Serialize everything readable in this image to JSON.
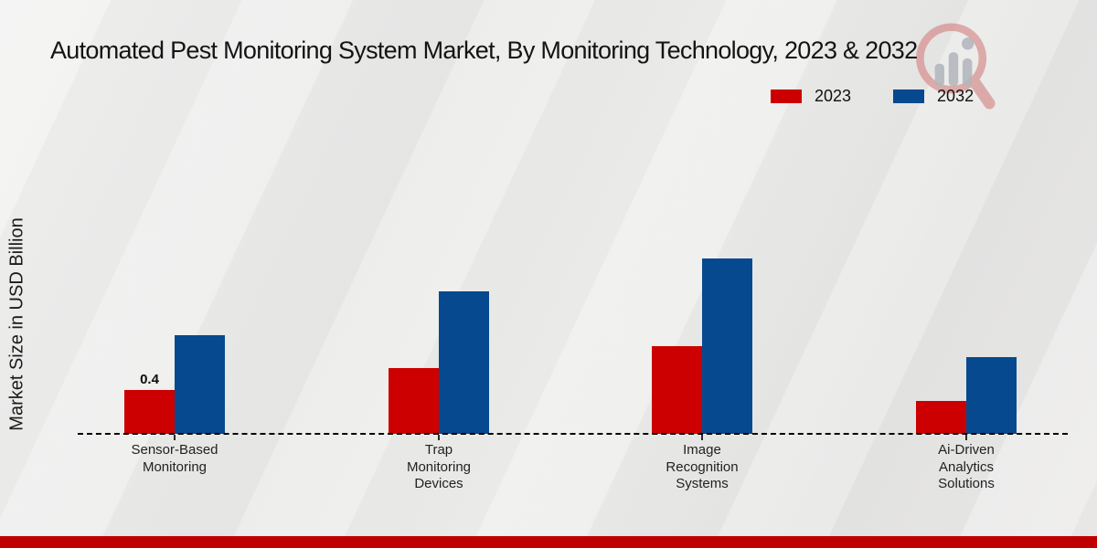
{
  "title": "Automated Pest Monitoring System Market, By Monitoring Technology, 2023 & 2032",
  "ylabel": "Market Size in USD Billion",
  "legend": {
    "items": [
      "2023",
      "2032"
    ]
  },
  "colors": {
    "series_2023": "#cc0000",
    "series_2032": "#07498e",
    "footer_band": "#c00000",
    "baseline": "#000000",
    "watermark_red": "#cf6a6a",
    "watermark_gray": "#b4b7bc"
  },
  "footer": {
    "bar_color": "#c00000"
  },
  "watermark_icon": "magnifier-bar-chart-logo",
  "chart_data": {
    "type": "bar",
    "categories": [
      "Sensor-Based Monitoring",
      "Trap Monitoring Devices",
      "Image Recognition Systems",
      "Ai-Driven Analytics Solutions"
    ],
    "series": [
      {
        "name": "2023",
        "color": "#cc0000",
        "values": [
          0.4,
          0.6,
          0.8,
          0.3
        ]
      },
      {
        "name": "2032",
        "color": "#07498e",
        "values": [
          0.9,
          1.3,
          1.6,
          0.7
        ]
      }
    ],
    "value_labels": [
      {
        "series": "2023",
        "category_index": 0,
        "text": "0.4"
      }
    ],
    "title": "Automated Pest Monitoring System Market, By Monitoring Technology, 2023 & 2032",
    "xlabel": "",
    "ylabel": "Market Size in USD Billion",
    "ylim": [
      0,
      1.9
    ],
    "grid": false,
    "baseline_style": "dashed",
    "legend_position": "top-right"
  }
}
